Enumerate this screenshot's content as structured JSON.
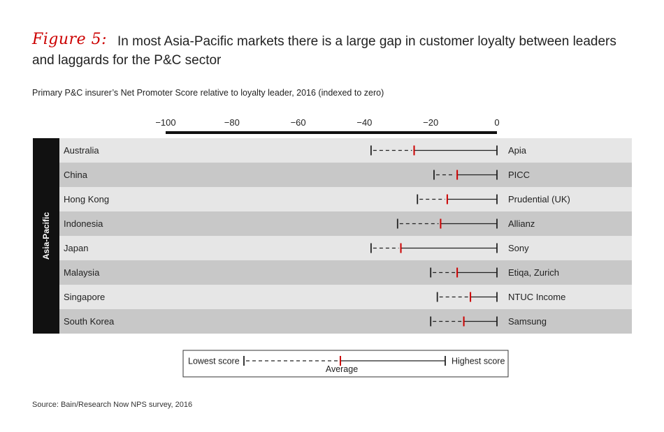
{
  "figure_label": "Figure 5:",
  "title": "In most Asia-Pacific markets there is a large gap in customer loyalty between leaders and laggards for the P&C sector",
  "source": "Source: Bain/Research Now NPS survey, 2016",
  "colors": {
    "accent": "#cc0000",
    "band_dark": "#c8c8c8",
    "band_light": "#e6e6e6",
    "group_bar": "#111111"
  },
  "chart_data": {
    "type": "range",
    "title": "Primary P&C insurer’s Net Promoter Score relative to loyalty leader, 2016 (indexed to zero)",
    "group": "Asia-Pacific",
    "xlim": [
      -100,
      0
    ],
    "ticks": [
      -100,
      -80,
      -60,
      -40,
      -20,
      0
    ],
    "tick_labels": [
      "−100",
      "−80",
      "−60",
      "−40",
      "−20",
      "0"
    ],
    "rows": [
      {
        "market": "Australia",
        "leader": "Apia",
        "lowest": -38,
        "average": -25,
        "highest": 0
      },
      {
        "market": "China",
        "leader": "PICC",
        "lowest": -19,
        "average": -12,
        "highest": 0
      },
      {
        "market": "Hong Kong",
        "leader": "Prudential (UK)",
        "lowest": -24,
        "average": -15,
        "highest": 0
      },
      {
        "market": "Indonesia",
        "leader": "Allianz",
        "lowest": -30,
        "average": -17,
        "highest": 0
      },
      {
        "market": "Japan",
        "leader": "Sony",
        "lowest": -38,
        "average": -29,
        "highest": 0
      },
      {
        "market": "Malaysia",
        "leader": "Etiqa, Zurich",
        "lowest": -20,
        "average": -12,
        "highest": 0
      },
      {
        "market": "Singapore",
        "leader": "NTUC Income",
        "lowest": -18,
        "average": -8,
        "highest": 0
      },
      {
        "market": "South Korea",
        "leader": "Samsung",
        "lowest": -20,
        "average": -10,
        "highest": 0
      }
    ],
    "legend": {
      "lowest": "Lowest score",
      "average": "Average",
      "highest": "Highest score"
    }
  }
}
